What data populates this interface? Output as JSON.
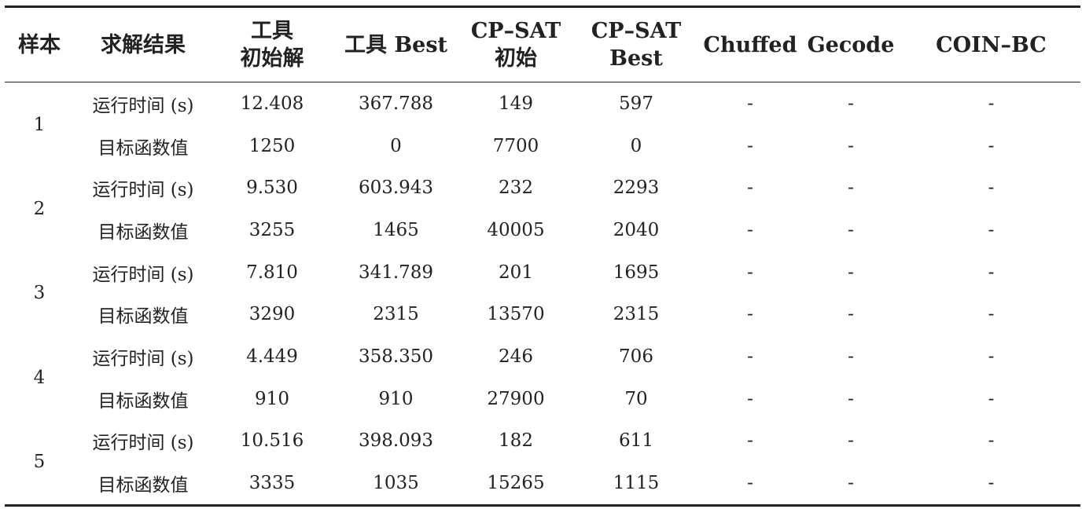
{
  "table": {
    "headers": [
      {
        "lines": [
          "样本"
        ]
      },
      {
        "lines": [
          "求解结果"
        ]
      },
      {
        "lines": [
          "工具",
          "初始解"
        ]
      },
      {
        "lines": [
          "工具 Best"
        ]
      },
      {
        "lines": [
          "CP–SAT",
          "初始"
        ]
      },
      {
        "lines": [
          "CP–SAT",
          "Best"
        ]
      },
      {
        "lines": [
          "Chuffed"
        ]
      },
      {
        "lines": [
          "Gecode"
        ]
      },
      {
        "lines": [
          "COIN–BC"
        ]
      }
    ],
    "samples": [
      {
        "id": "1",
        "rows": [
          {
            "metric": "运行时间 (s)",
            "values": [
              "12.408",
              "367.788",
              "149",
              "597",
              "-",
              "-",
              "-"
            ]
          },
          {
            "metric": "目标函数值",
            "values": [
              "1250",
              "0",
              "7700",
              "0",
              "-",
              "-",
              "-"
            ]
          }
        ]
      },
      {
        "id": "2",
        "rows": [
          {
            "metric": "运行时间 (s)",
            "values": [
              "9.530",
              "603.943",
              "232",
              "2293",
              "-",
              "-",
              "-"
            ]
          },
          {
            "metric": "目标函数值",
            "values": [
              "3255",
              "1465",
              "40005",
              "2040",
              "-",
              "-",
              "-"
            ]
          }
        ]
      },
      {
        "id": "3",
        "rows": [
          {
            "metric": "运行时间 (s)",
            "values": [
              "7.810",
              "341.789",
              "201",
              "1695",
              "-",
              "-",
              "-"
            ]
          },
          {
            "metric": "目标函数值",
            "values": [
              "3290",
              "2315",
              "13570",
              "2315",
              "-",
              "-",
              "-"
            ]
          }
        ]
      },
      {
        "id": "4",
        "rows": [
          {
            "metric": "运行时间 (s)",
            "values": [
              "4.449",
              "358.350",
              "246",
              "706",
              "-",
              "-",
              "-"
            ]
          },
          {
            "metric": "目标函数值",
            "values": [
              "910",
              "910",
              "27900",
              "70",
              "-",
              "-",
              "-"
            ]
          }
        ]
      },
      {
        "id": "5",
        "rows": [
          {
            "metric": "运行时间 (s)",
            "values": [
              "10.516",
              "398.093",
              "182",
              "611",
              "-",
              "-",
              "-"
            ]
          },
          {
            "metric": "目标函数值",
            "values": [
              "3335",
              "1035",
              "15265",
              "1115",
              "-",
              "-",
              "-"
            ]
          }
        ]
      }
    ]
  }
}
